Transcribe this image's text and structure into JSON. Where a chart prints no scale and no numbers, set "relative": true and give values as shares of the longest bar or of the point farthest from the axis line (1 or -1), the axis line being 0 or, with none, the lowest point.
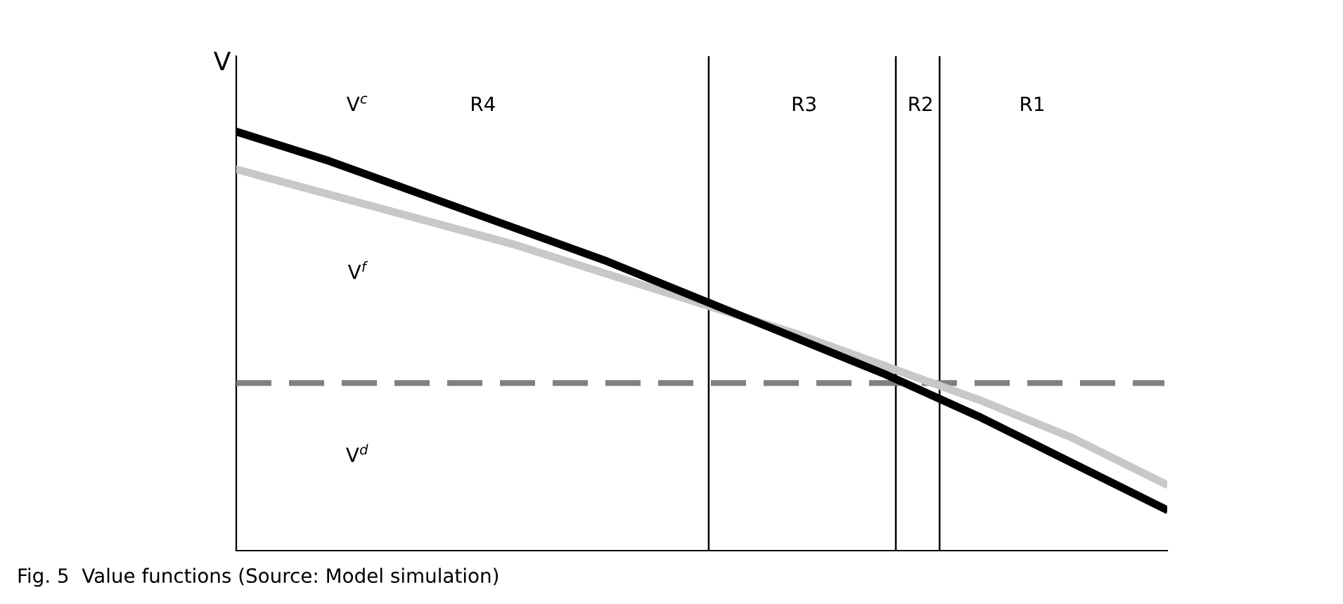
{
  "chart_data": {
    "type": "line",
    "relative": true,
    "ylabel": "V",
    "categories": [
      null,
      null,
      null,
      null,
      null,
      null,
      null,
      null,
      null,
      null,
      null
    ],
    "series": [
      {
        "color": "#000000",
        "values": [
          1,
          0.93,
          0.85,
          0.77,
          0.69,
          0.6,
          0.51,
          0.42,
          0.32,
          0.21,
          0.1
        ]
      },
      {
        "color": "#c8c8c8",
        "values": [
          0.91,
          0.85,
          0.79,
          0.73,
          0.66,
          0.59,
          0.52,
          0.44,
          0.36,
          0.27,
          0.16
        ]
      },
      {
        "color": "#808080",
        "line_style": "dashed",
        "values": [
          0.4,
          0.4,
          0.4,
          0.4,
          0.4,
          0.4,
          0.4,
          0.4,
          0.4,
          0.4,
          0.4
        ]
      }
    ],
    "annotations": [
      "V$^{c}$",
      "R4",
      "R3",
      "R2",
      "R1",
      "V$^{f}$",
      "V$^{d}$",
      "Fig. 5  Value functions (Source: Model simulation)"
    ],
    "legend": false
  }
}
